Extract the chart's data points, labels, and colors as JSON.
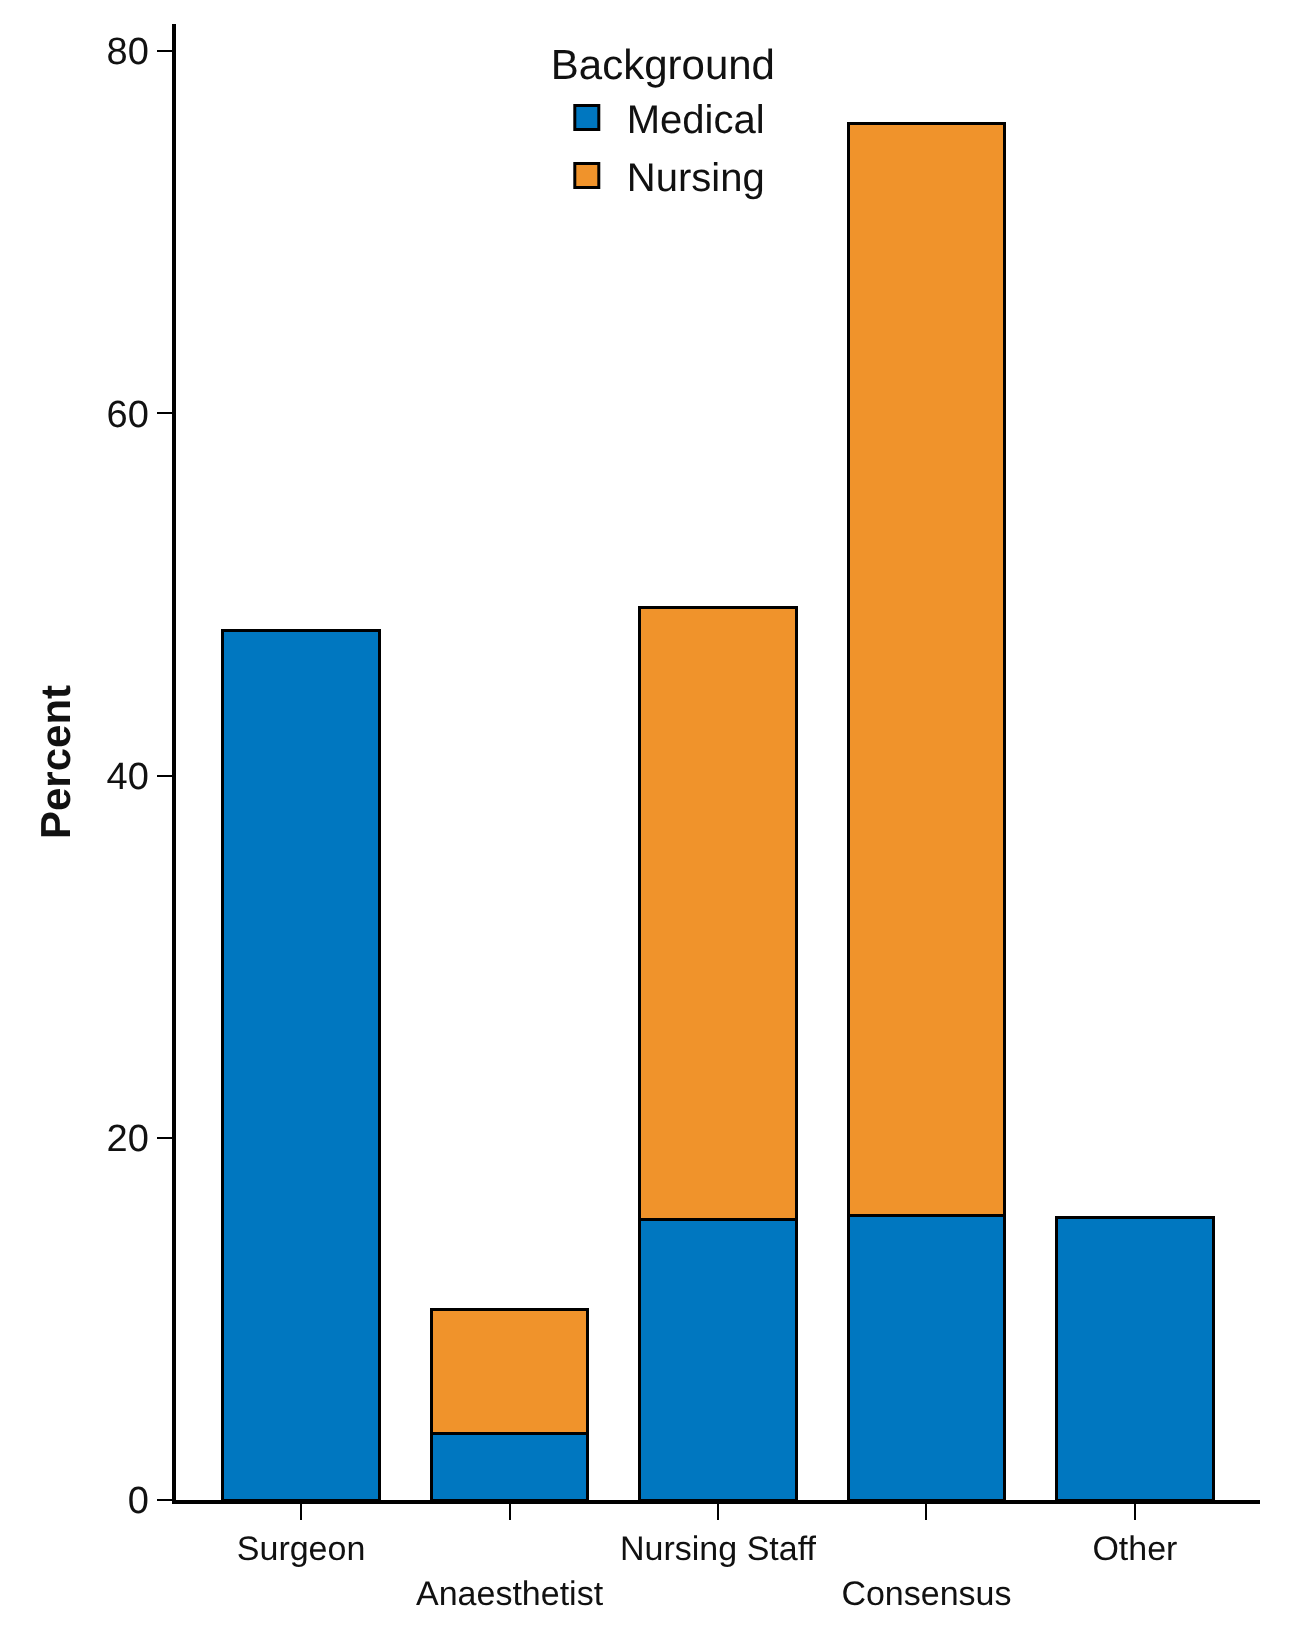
{
  "chart_data": {
    "type": "bar",
    "ylabel": "Percent",
    "legend_title": "Background",
    "stacked": true,
    "categories": [
      "Surgeon",
      "Anaesthetist",
      "Nursing Staff",
      "Consensus",
      "Other"
    ],
    "series": [
      {
        "name": "Medical",
        "color": "#0077c0",
        "values": [
          48,
          3.7,
          15.5,
          15.7,
          15.6
        ]
      },
      {
        "name": "Nursing",
        "color": "#f0932b",
        "values": [
          null,
          6.8,
          33.8,
          60.3,
          null
        ]
      }
    ],
    "ylim": [
      0,
      81.5
    ],
    "yticks": [
      0,
      20,
      40,
      60,
      80
    ],
    "grid": false,
    "legend": "top"
  }
}
